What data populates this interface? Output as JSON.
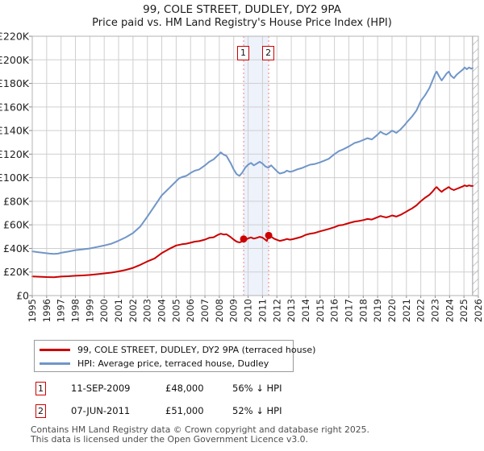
{
  "title": "99, COLE STREET, DUDLEY, DY2 9PA",
  "subtitle": "Price paid vs. HM Land Registry's House Price Index (HPI)",
  "chart_data": {
    "type": "line",
    "x_axis_years": [
      1995,
      1996,
      1997,
      1998,
      1999,
      2000,
      2001,
      2002,
      2003,
      2004,
      2005,
      2006,
      2007,
      2008,
      2009,
      2010,
      2011,
      2012,
      2013,
      2014,
      2015,
      2016,
      2017,
      2018,
      2019,
      2020,
      2021,
      2022,
      2023,
      2024,
      2025,
      2026
    ],
    "y_tick_labels": [
      "£0",
      "£20K",
      "£40K",
      "£60K",
      "£80K",
      "£100K",
      "£120K",
      "£140K",
      "£160K",
      "£180K",
      "£200K",
      "£220K"
    ],
    "y_max_thousands": 220,
    "x_min": 1995,
    "x_max": 2026,
    "no_data_after": 2025.6,
    "grid": true,
    "legend_position": "bottom",
    "colors": {
      "price": "#cc0000",
      "hpi": "#7096c8",
      "grid": "#cfcfcf",
      "border": "#b3b3b3",
      "sale_line": "#f08080",
      "band": "#edf2fb",
      "hatch": "#c9c9cf",
      "hatch_edge": "#9a9aa2"
    },
    "series": [
      {
        "name": "hpi",
        "legend": "HPI: Average price, terraced house, Dudley",
        "color_key": "hpi",
        "points": [
          [
            1995.0,
            37.5
          ],
          [
            1995.4,
            36.8
          ],
          [
            1995.8,
            36.2
          ],
          [
            1996.2,
            35.6
          ],
          [
            1996.5,
            35.3
          ],
          [
            1996.8,
            35.6
          ],
          [
            1997.0,
            36.3
          ],
          [
            1997.5,
            37.3
          ],
          [
            1998.0,
            38.5
          ],
          [
            1998.5,
            39.2
          ],
          [
            1999.0,
            40.0
          ],
          [
            1999.5,
            41.2
          ],
          [
            2000.0,
            42.5
          ],
          [
            2000.5,
            44.0
          ],
          [
            2001.0,
            46.5
          ],
          [
            2001.5,
            49.5
          ],
          [
            2002.0,
            53.0
          ],
          [
            2002.5,
            58.5
          ],
          [
            2003.0,
            67.0
          ],
          [
            2003.5,
            76.0
          ],
          [
            2004.0,
            85.0
          ],
          [
            2004.5,
            91.0
          ],
          [
            2005.0,
            97.0
          ],
          [
            2005.2,
            99.5
          ],
          [
            2005.4,
            100.5
          ],
          [
            2005.7,
            101.5
          ],
          [
            2006.0,
            104.0
          ],
          [
            2006.3,
            106.0
          ],
          [
            2006.6,
            107.0
          ],
          [
            2007.0,
            110.5
          ],
          [
            2007.3,
            113.5
          ],
          [
            2007.6,
            115.5
          ],
          [
            2007.9,
            119.0
          ],
          [
            2008.1,
            121.5
          ],
          [
            2008.3,
            119.5
          ],
          [
            2008.5,
            118.5
          ],
          [
            2008.8,
            112.0
          ],
          [
            2009.0,
            107.0
          ],
          [
            2009.2,
            103.0
          ],
          [
            2009.4,
            101.5
          ],
          [
            2009.6,
            104.5
          ],
          [
            2009.8,
            108.5
          ],
          [
            2010.0,
            111.0
          ],
          [
            2010.2,
            112.5
          ],
          [
            2010.4,
            110.5
          ],
          [
            2010.6,
            112.0
          ],
          [
            2010.8,
            113.5
          ],
          [
            2011.0,
            112.0
          ],
          [
            2011.2,
            109.5
          ],
          [
            2011.4,
            108.5
          ],
          [
            2011.6,
            110.5
          ],
          [
            2011.8,
            108.0
          ],
          [
            2012.0,
            105.5
          ],
          [
            2012.2,
            103.5
          ],
          [
            2012.5,
            104.5
          ],
          [
            2012.7,
            106.0
          ],
          [
            2012.9,
            105.0
          ],
          [
            2013.1,
            105.5
          ],
          [
            2013.4,
            107.0
          ],
          [
            2013.7,
            108.0
          ],
          [
            2014.0,
            109.5
          ],
          [
            2014.3,
            111.0
          ],
          [
            2014.6,
            111.5
          ],
          [
            2015.0,
            113.0
          ],
          [
            2015.3,
            114.5
          ],
          [
            2015.6,
            116.0
          ],
          [
            2016.0,
            120.0
          ],
          [
            2016.3,
            122.5
          ],
          [
            2016.6,
            124.0
          ],
          [
            2017.0,
            126.5
          ],
          [
            2017.4,
            129.5
          ],
          [
            2017.7,
            130.5
          ],
          [
            2018.0,
            132.0
          ],
          [
            2018.3,
            133.5
          ],
          [
            2018.6,
            132.5
          ],
          [
            2019.0,
            136.5
          ],
          [
            2019.2,
            139.0
          ],
          [
            2019.4,
            137.5
          ],
          [
            2019.6,
            136.5
          ],
          [
            2019.8,
            138.0
          ],
          [
            2020.0,
            140.0
          ],
          [
            2020.3,
            138.0
          ],
          [
            2020.6,
            141.0
          ],
          [
            2020.9,
            145.0
          ],
          [
            2021.1,
            148.0
          ],
          [
            2021.4,
            152.0
          ],
          [
            2021.7,
            157.0
          ],
          [
            2022.0,
            165.0
          ],
          [
            2022.3,
            170.0
          ],
          [
            2022.6,
            176.0
          ],
          [
            2022.8,
            182.0
          ],
          [
            2023.0,
            188.0
          ],
          [
            2023.1,
            190.0
          ],
          [
            2023.3,
            185.5
          ],
          [
            2023.45,
            182.5
          ],
          [
            2023.6,
            185.0
          ],
          [
            2023.8,
            188.5
          ],
          [
            2023.95,
            190.0
          ],
          [
            2024.1,
            186.5
          ],
          [
            2024.3,
            184.5
          ],
          [
            2024.5,
            187.5
          ],
          [
            2024.7,
            189.5
          ],
          [
            2024.9,
            191.5
          ],
          [
            2025.05,
            193.5
          ],
          [
            2025.2,
            192.0
          ],
          [
            2025.35,
            193.5
          ],
          [
            2025.5,
            192.5
          ],
          [
            2025.6,
            193.0
          ]
        ]
      },
      {
        "name": "price-paid",
        "legend": "99, COLE STREET, DUDLEY, DY2 9PA (terraced house)",
        "color_key": "price",
        "points": [
          [
            1995.0,
            16.2
          ],
          [
            1995.5,
            16.0
          ],
          [
            1996.0,
            15.7
          ],
          [
            1996.5,
            15.6
          ],
          [
            1997.0,
            16.1
          ],
          [
            1997.5,
            16.4
          ],
          [
            1998.0,
            16.8
          ],
          [
            1998.5,
            17.1
          ],
          [
            1999.0,
            17.5
          ],
          [
            1999.5,
            18.1
          ],
          [
            2000.0,
            18.8
          ],
          [
            2000.5,
            19.5
          ],
          [
            2001.0,
            20.5
          ],
          [
            2001.5,
            21.8
          ],
          [
            2002.0,
            23.5
          ],
          [
            2002.5,
            26.0
          ],
          [
            2003.0,
            29.0
          ],
          [
            2003.5,
            31.5
          ],
          [
            2004.0,
            36.0
          ],
          [
            2004.5,
            39.5
          ],
          [
            2005.0,
            42.5
          ],
          [
            2005.4,
            43.5
          ],
          [
            2005.7,
            44.0
          ],
          [
            2006.0,
            44.8
          ],
          [
            2006.3,
            45.8
          ],
          [
            2006.6,
            46.2
          ],
          [
            2007.0,
            47.5
          ],
          [
            2007.3,
            49.0
          ],
          [
            2007.6,
            49.5
          ],
          [
            2007.9,
            51.5
          ],
          [
            2008.1,
            52.5
          ],
          [
            2008.3,
            51.8
          ],
          [
            2008.5,
            52.0
          ],
          [
            2008.8,
            49.5
          ],
          [
            2009.0,
            47.5
          ],
          [
            2009.2,
            45.8
          ],
          [
            2009.4,
            45.0
          ],
          [
            2009.55,
            45.8
          ],
          [
            2009.7,
            48.0
          ],
          [
            2009.85,
            47.5
          ],
          [
            2010.0,
            48.5
          ],
          [
            2010.2,
            49.3
          ],
          [
            2010.4,
            48.3
          ],
          [
            2010.6,
            49.0
          ],
          [
            2010.8,
            49.8
          ],
          [
            2011.0,
            49.2
          ],
          [
            2011.15,
            47.8
          ],
          [
            2011.3,
            46.3
          ],
          [
            2011.43,
            51.0
          ],
          [
            2011.6,
            50.0
          ],
          [
            2011.8,
            48.3
          ],
          [
            2012.0,
            47.3
          ],
          [
            2012.2,
            46.4
          ],
          [
            2012.5,
            47.2
          ],
          [
            2012.7,
            48.0
          ],
          [
            2012.9,
            47.4
          ],
          [
            2013.1,
            47.8
          ],
          [
            2013.4,
            48.8
          ],
          [
            2013.7,
            49.8
          ],
          [
            2014.0,
            51.5
          ],
          [
            2014.3,
            52.5
          ],
          [
            2014.6,
            53.0
          ],
          [
            2015.0,
            54.5
          ],
          [
            2015.3,
            55.5
          ],
          [
            2015.6,
            56.5
          ],
          [
            2016.0,
            58.0
          ],
          [
            2016.3,
            59.5
          ],
          [
            2016.6,
            60.0
          ],
          [
            2017.0,
            61.5
          ],
          [
            2017.4,
            62.8
          ],
          [
            2017.7,
            63.3
          ],
          [
            2018.0,
            64.0
          ],
          [
            2018.3,
            65.0
          ],
          [
            2018.6,
            64.5
          ],
          [
            2019.0,
            66.5
          ],
          [
            2019.2,
            67.5
          ],
          [
            2019.4,
            66.8
          ],
          [
            2019.6,
            66.3
          ],
          [
            2019.8,
            67.0
          ],
          [
            2020.0,
            68.0
          ],
          [
            2020.3,
            67.0
          ],
          [
            2020.6,
            68.5
          ],
          [
            2020.9,
            70.5
          ],
          [
            2021.1,
            72.0
          ],
          [
            2021.4,
            74.0
          ],
          [
            2021.7,
            76.5
          ],
          [
            2022.0,
            80.0
          ],
          [
            2022.3,
            83.0
          ],
          [
            2022.6,
            85.5
          ],
          [
            2022.8,
            88.0
          ],
          [
            2023.0,
            91.0
          ],
          [
            2023.1,
            92.0
          ],
          [
            2023.3,
            89.5
          ],
          [
            2023.45,
            88.0
          ],
          [
            2023.6,
            89.5
          ],
          [
            2023.8,
            91.0
          ],
          [
            2023.95,
            92.0
          ],
          [
            2024.1,
            90.5
          ],
          [
            2024.3,
            89.5
          ],
          [
            2024.5,
            90.5
          ],
          [
            2024.7,
            91.5
          ],
          [
            2024.9,
            92.5
          ],
          [
            2025.05,
            93.5
          ],
          [
            2025.2,
            92.8
          ],
          [
            2025.35,
            93.5
          ],
          [
            2025.5,
            93.0
          ],
          [
            2025.6,
            93.0
          ]
        ]
      }
    ],
    "sales": [
      {
        "label": "1",
        "year": 2009.69,
        "value": 48
      },
      {
        "label": "2",
        "year": 2011.43,
        "value": 51
      }
    ]
  },
  "legend": {
    "items": [
      {
        "label": "99, COLE STREET, DUDLEY, DY2 9PA (terraced house)"
      },
      {
        "label": "HPI: Average price, terraced house, Dudley"
      }
    ]
  },
  "transactions": [
    {
      "num": "1",
      "date": "11-SEP-2009",
      "price": "£48,000",
      "vs_hpi": "56% ↓ HPI"
    },
    {
      "num": "2",
      "date": "07-JUN-2011",
      "price": "£51,000",
      "vs_hpi": "52% ↓ HPI"
    }
  ],
  "footer": {
    "line1": "Contains HM Land Registry data © Crown copyright and database right 2025.",
    "line2": "This data is licensed under the Open Government Licence v3.0."
  }
}
